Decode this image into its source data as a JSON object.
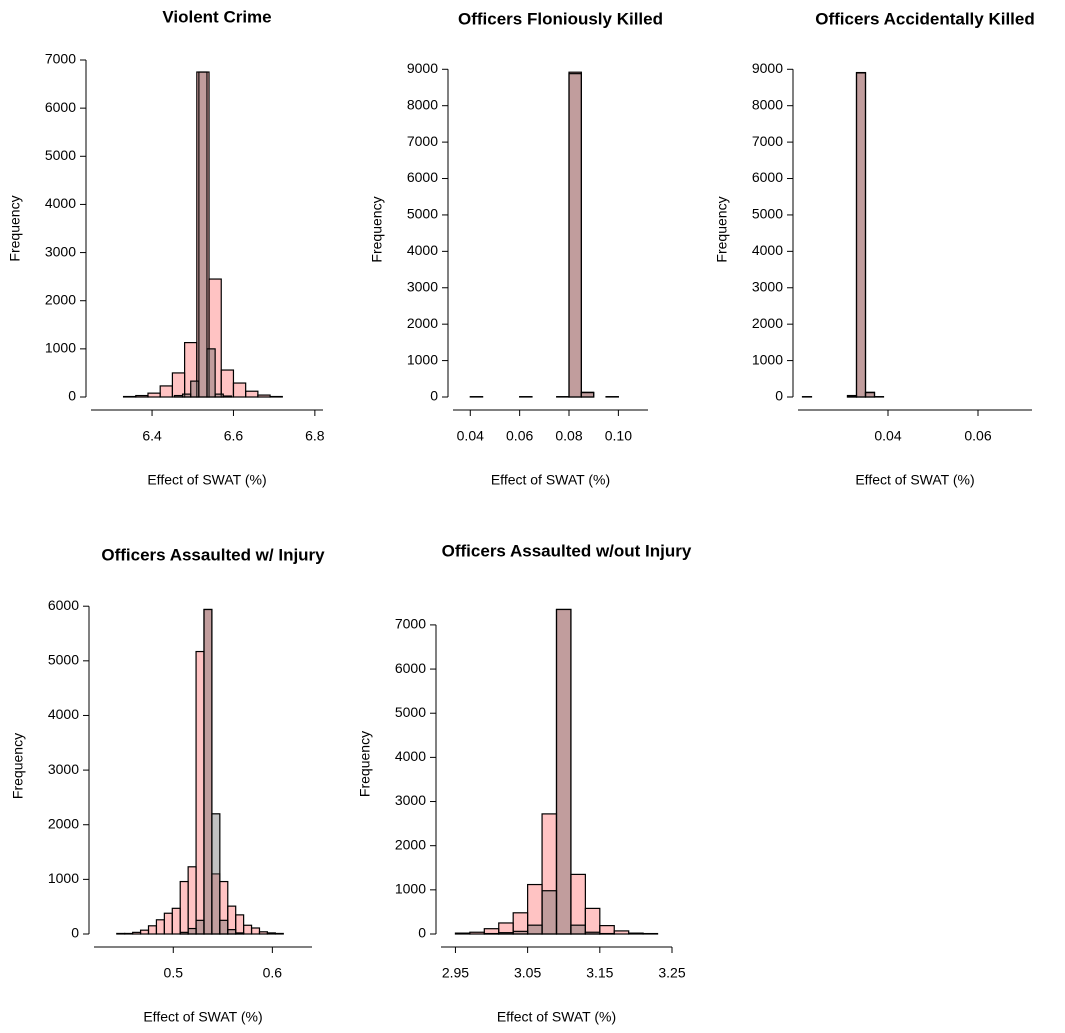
{
  "chart_data": [
    {
      "type": "histogram",
      "title": "Violent Crime",
      "xlabel": "Effect of SWAT (%)",
      "ylabel": "Frequency",
      "xlim": [
        6.25,
        6.82
      ],
      "ylim": [
        0,
        7000
      ],
      "xticks": [
        6.4,
        6.6,
        6.8
      ],
      "yticks": [
        0,
        1000,
        2000,
        3000,
        4000,
        5000,
        6000,
        7000
      ],
      "series": [
        {
          "color": "rgba(255,105,105,0.4)",
          "bins": [
            6.27,
            6.3,
            6.33,
            6.36,
            6.39,
            6.42,
            6.45,
            6.48,
            6.51,
            6.54,
            6.57,
            6.6,
            6.63,
            6.66,
            6.69,
            6.72,
            6.75,
            6.78,
            6.81
          ],
          "values": [
            0,
            0,
            10,
            30,
            80,
            230,
            500,
            1130,
            6750,
            2450,
            560,
            290,
            120,
            40,
            10,
            0,
            0,
            0
          ]
        },
        {
          "color": "rgba(100,100,100,0.4)",
          "bins": [
            6.455,
            6.475,
            6.495,
            6.515,
            6.535,
            6.555,
            6.575,
            6.595
          ],
          "values": [
            30,
            60,
            330,
            6750,
            1000,
            60,
            20
          ]
        }
      ]
    },
    {
      "type": "histogram",
      "title": "Officers Floniously Killed",
      "xlabel": "Effect of SWAT (%)",
      "ylabel": "Frequency",
      "xlim": [
        0.033,
        0.112
      ],
      "ylim": [
        0,
        9200
      ],
      "xticks": [
        0.04,
        0.06,
        0.08,
        {
          "value": 0.1,
          "label": "0.10"
        }
      ],
      "yticks": [
        0,
        1000,
        2000,
        3000,
        4000,
        5000,
        6000,
        7000,
        8000,
        9000
      ],
      "series": [
        {
          "color": "rgba(255,105,105,0.4)",
          "bins": [
            0.035,
            0.04,
            0.045,
            0.05,
            0.055,
            0.06,
            0.065,
            0.07,
            0.075,
            0.08,
            0.085,
            0.09,
            0.095,
            0.1,
            0.105,
            0.11
          ],
          "values": [
            0,
            10,
            0,
            0,
            0,
            10,
            0,
            0,
            10,
            8920,
            130,
            0,
            10,
            0,
            0
          ]
        },
        {
          "color": "rgba(100,100,100,0.4)",
          "bins": [
            0.035,
            0.04,
            0.045,
            0.05,
            0.055,
            0.06,
            0.065,
            0.07,
            0.075,
            0.08,
            0.085,
            0.09,
            0.095,
            0.1,
            0.105,
            0.11
          ],
          "values": [
            0,
            0,
            0,
            0,
            0,
            0,
            0,
            0,
            0,
            8880,
            120,
            0,
            0,
            0,
            0
          ]
        }
      ]
    },
    {
      "type": "histogram",
      "title": "Officers Accidentally Killed",
      "xlabel": "Effect of SWAT (%)",
      "ylabel": "Frequency",
      "xlim": [
        0.02,
        0.072
      ],
      "ylim": [
        0,
        9200
      ],
      "xticks": [
        0.04,
        0.06
      ],
      "yticks": [
        0,
        1000,
        2000,
        3000,
        4000,
        5000,
        6000,
        7000,
        8000,
        9000
      ],
      "series": [
        {
          "color": "rgba(255,105,105,0.4)",
          "bins": [
            0.021,
            0.023,
            0.025,
            0.027,
            0.029,
            0.031,
            0.033,
            0.035,
            0.037,
            0.039,
            0.041,
            0.043,
            0.045,
            0.047,
            0.049,
            0.051,
            0.053,
            0.055,
            0.057,
            0.059,
            0.061,
            0.063,
            0.065,
            0.067,
            0.069,
            0.071
          ],
          "values": [
            10,
            0,
            0,
            0,
            0,
            40,
            8910,
            130,
            10,
            0,
            0,
            0,
            0,
            0,
            0,
            0,
            0,
            0,
            0,
            0,
            0,
            0,
            0,
            0,
            0
          ]
        },
        {
          "color": "rgba(100,100,100,0.4)",
          "bins": [
            0.021,
            0.023,
            0.025,
            0.027,
            0.029,
            0.031,
            0.033,
            0.035,
            0.037,
            0.039,
            0.041,
            0.043,
            0.045,
            0.047,
            0.049,
            0.051,
            0.053,
            0.055,
            0.057,
            0.059,
            0.061,
            0.063,
            0.065,
            0.067,
            0.069,
            0.071
          ],
          "values": [
            0,
            0,
            0,
            0,
            0,
            30,
            8900,
            120,
            0,
            0,
            0,
            0,
            0,
            0,
            0,
            0,
            0,
            0,
            0,
            0,
            0,
            0,
            0,
            0,
            0
          ]
        }
      ]
    },
    {
      "type": "histogram",
      "title": "Officers Assaulted w/ Injury",
      "xlabel": "Effect of SWAT (%)",
      "ylabel": "Frequency",
      "xlim": [
        0.42,
        0.64
      ],
      "ylim": [
        0,
        6150
      ],
      "xticks": [
        0.5,
        0.6
      ],
      "yticks": [
        0,
        1000,
        2000,
        3000,
        4000,
        5000,
        6000
      ],
      "series": [
        {
          "color": "rgba(255,105,105,0.4)",
          "bins": [
            0.427,
            0.435,
            0.443,
            0.451,
            0.459,
            0.467,
            0.475,
            0.483,
            0.491,
            0.499,
            0.507,
            0.515,
            0.523,
            0.531,
            0.539,
            0.547,
            0.555,
            0.563,
            0.571,
            0.579,
            0.587,
            0.595,
            0.603,
            0.611,
            0.619,
            0.627,
            0.635
          ],
          "values": [
            0,
            0,
            10,
            10,
            30,
            70,
            150,
            260,
            380,
            470,
            960,
            1230,
            5170,
            5940,
            1100,
            960,
            510,
            350,
            160,
            110,
            40,
            20,
            10,
            0,
            0,
            0
          ]
        },
        {
          "color": "rgba(100,100,100,0.4)",
          "bins": [
            0.507,
            0.515,
            0.523,
            0.531,
            0.539,
            0.547,
            0.555,
            0.563,
            0.571
          ],
          "values": [
            30,
            100,
            250,
            5940,
            2200,
            250,
            80,
            20
          ]
        }
      ]
    },
    {
      "type": "histogram",
      "title": "Officers Assaulted w/out Injury",
      "xlabel": "Effect of SWAT (%)",
      "ylabel": "Frequency",
      "xlim": [
        2.93,
        3.25
      ],
      "ylim": [
        0,
        7700
      ],
      "xticks": [
        2.95,
        3.05,
        3.15,
        3.25
      ],
      "yticks": [
        0,
        1000,
        2000,
        3000,
        4000,
        5000,
        6000,
        7000
      ],
      "series": [
        {
          "color": "rgba(255,105,105,0.4)",
          "bins": [
            2.95,
            2.97,
            2.99,
            3.01,
            3.03,
            3.05,
            3.07,
            3.09,
            3.11,
            3.13,
            3.15,
            3.17,
            3.19,
            3.21,
            3.23,
            3.25
          ],
          "values": [
            20,
            40,
            120,
            250,
            480,
            1120,
            2720,
            7350,
            1350,
            580,
            190,
            70,
            20,
            10,
            0
          ]
        },
        {
          "color": "rgba(100,100,100,0.4)",
          "bins": [
            2.95,
            2.97,
            2.99,
            3.01,
            3.03,
            3.05,
            3.07,
            3.09,
            3.11,
            3.13,
            3.15,
            3.17,
            3.19,
            3.21,
            3.23,
            3.25
          ],
          "values": [
            0,
            0,
            10,
            30,
            60,
            200,
            980,
            7350,
            200,
            40,
            10,
            0,
            0,
            0,
            0
          ]
        }
      ]
    }
  ]
}
